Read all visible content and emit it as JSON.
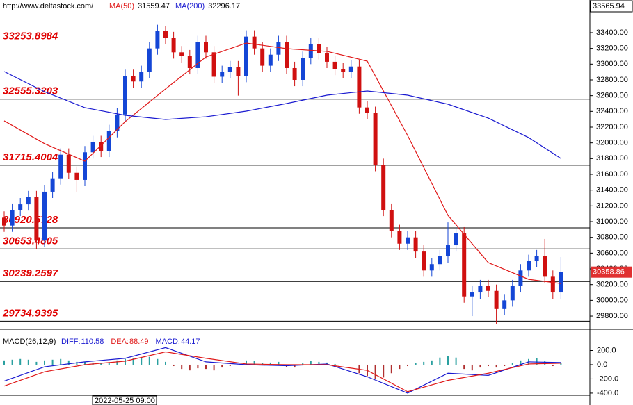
{
  "chart_data": [
    {
      "type": "candlestick",
      "source": "http://www.deltastock.com/",
      "top_price": 33565.94,
      "ylim": [
        29668,
        33788
      ],
      "yticks": [
        {
          "value": 33400,
          "label": "33400.00"
        },
        {
          "value": 33200,
          "label": "33200.00"
        },
        {
          "value": 33000,
          "label": "33000.00"
        },
        {
          "value": 32800,
          "label": "32800.00"
        },
        {
          "value": 32600,
          "label": "32600.00"
        },
        {
          "value": 32400,
          "label": "32400.00"
        },
        {
          "value": 32200,
          "label": "32200.00"
        },
        {
          "value": 32000,
          "label": "32000.00"
        },
        {
          "value": 31800,
          "label": "31800.00"
        },
        {
          "value": 31600,
          "label": "31600.00"
        },
        {
          "value": 31400,
          "label": "31400.00"
        },
        {
          "value": 31200,
          "label": "31200.00"
        },
        {
          "value": 31000,
          "label": "31000.00"
        },
        {
          "value": 30800,
          "label": "30800.00"
        },
        {
          "value": 30600,
          "label": "30600.00"
        },
        {
          "value": 30400,
          "label": "30400.00"
        },
        {
          "value": 30200,
          "label": "30200.00"
        },
        {
          "value": 30000,
          "label": "30000.00"
        },
        {
          "value": 29800,
          "label": "29800.00"
        }
      ],
      "levels": [
        33253.8984,
        32555.3203,
        31715.4004,
        30920.5728,
        30653.4805,
        30239.2597,
        29734.9395
      ],
      "up_color": "#1446d6",
      "down_color": "#d01010",
      "open": [
        31050,
        30950,
        31150,
        31220,
        31310,
        30760,
        31380,
        31550,
        31850,
        31620,
        31530,
        31880,
        32010,
        31900,
        32150,
        32360,
        32850,
        32780,
        32900,
        33200,
        33420,
        33330,
        33150,
        33100,
        32950,
        33280,
        33150,
        32840,
        32900,
        32960,
        32850,
        33350,
        33200,
        32980,
        33120,
        33280,
        32950,
        32800,
        33080,
        33250,
        33140,
        33030,
        32940,
        32900,
        32970,
        32450,
        32380,
        31720,
        31150,
        30880,
        30720,
        30800,
        30620,
        30380,
        30460,
        30560,
        30700,
        30850,
        30050,
        30100,
        30180,
        30120,
        29890,
        30000,
        30180,
        30380,
        30500,
        30560,
        30300,
        30100
      ],
      "high": [
        31130,
        31230,
        31300,
        31390,
        31390,
        31460,
        31630,
        31930,
        31930,
        31700,
        31960,
        32090,
        32090,
        32230,
        32440,
        32930,
        32930,
        32980,
        33280,
        33500,
        33480,
        33410,
        33230,
        33180,
        33360,
        33360,
        33230,
        32980,
        33040,
        33040,
        33430,
        33430,
        33280,
        33200,
        33360,
        33360,
        33030,
        33160,
        33330,
        33330,
        33220,
        33110,
        33020,
        33050,
        33050,
        32530,
        32460,
        31800,
        31230,
        30960,
        30880,
        30880,
        30700,
        30540,
        30640,
        30990,
        30930,
        30930,
        30180,
        30260,
        30260,
        30200,
        30080,
        30260,
        30460,
        30580,
        30640,
        30780,
        30380,
        30550
      ],
      "low": [
        30870,
        30870,
        31070,
        31140,
        30653,
        30680,
        31300,
        31470,
        31540,
        31380,
        31450,
        31800,
        31820,
        31820,
        32070,
        32280,
        32700,
        32700,
        32820,
        33120,
        33250,
        33070,
        33020,
        32870,
        32870,
        33070,
        32760,
        32760,
        32820,
        32600,
        32770,
        33120,
        32900,
        32900,
        33040,
        32870,
        32720,
        32720,
        33000,
        33060,
        32950,
        32860,
        32820,
        32820,
        32370,
        32300,
        31640,
        31070,
        30800,
        30640,
        30640,
        30540,
        30300,
        30300,
        30380,
        30480,
        30620,
        29970,
        29800,
        30020,
        30040,
        29700,
        29810,
        29920,
        30100,
        30300,
        30420,
        30220,
        30020,
        30020
      ],
      "close": [
        30950,
        31150,
        31220,
        31310,
        30760,
        31380,
        31550,
        31850,
        31620,
        31530,
        31880,
        32010,
        31900,
        32150,
        32360,
        32850,
        32780,
        32900,
        33200,
        33420,
        33330,
        33150,
        33100,
        32950,
        33280,
        33150,
        32840,
        32900,
        32960,
        32850,
        33350,
        33200,
        32980,
        33120,
        33280,
        32950,
        32800,
        33080,
        33250,
        33140,
        33030,
        32940,
        32900,
        32970,
        32450,
        32380,
        31720,
        31150,
        30880,
        30720,
        30800,
        30620,
        30380,
        30460,
        30560,
        30700,
        30850,
        30050,
        30100,
        30180,
        30120,
        29890,
        30000,
        30180,
        30380,
        30500,
        30560,
        30300,
        30100,
        30358.86
      ],
      "series": [
        {
          "name": "MA(50)",
          "color": "#e01818",
          "last": 31559.47,
          "x": [
            0,
            5,
            10,
            15,
            20,
            25,
            30,
            35,
            40,
            45,
            50,
            55,
            60,
            65,
            69
          ],
          "values": [
            32280,
            31990,
            31767,
            32270,
            32685,
            33091,
            33268,
            33197,
            33162,
            33038,
            32094,
            31079,
            30479,
            30267,
            30214
          ]
        },
        {
          "name": "MA(200)",
          "color": "#1a1ad0",
          "last": 32296.17,
          "x": [
            0,
            5,
            10,
            15,
            20,
            25,
            30,
            35,
            40,
            45,
            50,
            55,
            60,
            65,
            69
          ],
          "values": [
            32906,
            32650,
            32447,
            32350,
            32297,
            32332,
            32403,
            32500,
            32606,
            32659,
            32606,
            32491,
            32314,
            32067,
            31802
          ]
        }
      ]
    },
    {
      "type": "macd",
      "title": "MACD(26,12,9)",
      "cursor_date": "2022-05-25 09:00",
      "ylim": [
        -430,
        410
      ],
      "yticks": [
        {
          "value": 200,
          "label": "200.0"
        },
        {
          "value": 0,
          "label": "0.0"
        },
        {
          "value": -200,
          "label": "-200.0"
        },
        {
          "value": -400,
          "label": "-400.0"
        }
      ],
      "series": [
        {
          "name": "DIFF:",
          "color": "#1a1ad0",
          "readout": 110.58,
          "x": [
            0,
            5,
            10,
            15,
            20,
            25,
            30,
            35,
            40,
            45,
            50,
            55,
            60,
            65,
            69
          ],
          "values": [
            -230,
            -30,
            40,
            90,
            240,
            40,
            0,
            -15,
            10,
            -170,
            -400,
            -120,
            -150,
            40,
            30
          ]
        },
        {
          "name": "DEA:",
          "color": "#e01818",
          "readout": 88.49,
          "x": [
            0,
            5,
            10,
            15,
            20,
            25,
            30,
            35,
            40,
            45,
            50,
            55,
            60,
            65,
            69
          ],
          "values": [
            -300,
            -100,
            0,
            50,
            180,
            90,
            10,
            0,
            0,
            -80,
            -380,
            -220,
            -120,
            10,
            20
          ]
        }
      ],
      "histogram": {
        "name": "MACD:",
        "readout": 44.17,
        "up_color": "#2aa0a0",
        "down_color": "#b03030",
        "values": [
          60,
          70,
          80,
          70,
          40,
          60,
          70,
          80,
          60,
          40,
          40,
          30,
          20,
          30,
          60,
          80,
          90,
          100,
          110,
          80,
          40,
          -20,
          -60,
          -80,
          -50,
          -60,
          -80,
          -40,
          -20,
          0,
          60,
          50,
          20,
          30,
          40,
          -30,
          -40,
          20,
          50,
          40,
          30,
          10,
          -10,
          0,
          -120,
          -160,
          -200,
          -180,
          -120,
          -60,
          -20,
          20,
          40,
          60,
          100,
          120,
          100,
          -60,
          -80,
          -40,
          -20,
          -40,
          -20,
          20,
          60,
          80,
          90,
          50,
          -20,
          20
        ]
      }
    }
  ]
}
